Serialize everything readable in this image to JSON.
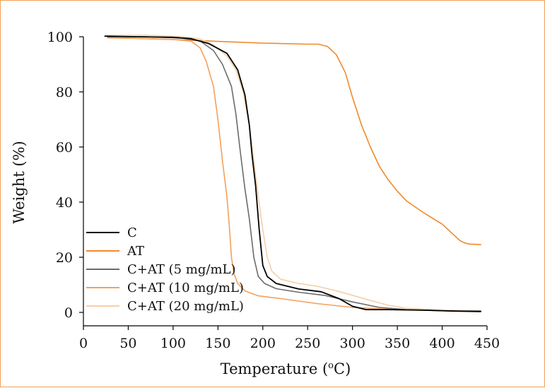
{
  "chart_data": {
    "type": "line",
    "title": "",
    "xlabel_main": "Temperature (",
    "xlabel_sup": "o",
    "xlabel_end": "C)",
    "ylabel": "Weight (%)",
    "xlim": [
      0,
      450
    ],
    "ylim": [
      -5,
      100
    ],
    "x_ticks": [
      0,
      50,
      100,
      150,
      200,
      250,
      300,
      350,
      400,
      450
    ],
    "y_ticks": [
      0,
      20,
      40,
      60,
      80,
      100
    ],
    "x_tick_labels": [
      "0",
      "50",
      "100",
      "150",
      "200",
      "250",
      "300",
      "350",
      "400",
      "450"
    ],
    "y_tick_labels": [
      "0",
      "20",
      "40",
      "60",
      "80",
      "100"
    ],
    "grid": false,
    "legend_position": "bottom-left",
    "series": [
      {
        "name": "C",
        "color": "#000000",
        "points": [
          [
            24,
            100.2
          ],
          [
            60,
            100
          ],
          [
            100,
            99.8
          ],
          [
            120,
            99.3
          ],
          [
            140,
            97.5
          ],
          [
            160,
            94
          ],
          [
            172,
            88
          ],
          [
            180,
            79
          ],
          [
            185,
            68
          ],
          [
            188,
            57
          ],
          [
            192,
            46
          ],
          [
            196,
            30
          ],
          [
            200,
            17
          ],
          [
            205,
            13
          ],
          [
            215,
            10.5
          ],
          [
            240,
            8.5
          ],
          [
            265,
            7.5
          ],
          [
            285,
            5
          ],
          [
            300,
            2.2
          ],
          [
            315,
            1
          ],
          [
            340,
            1
          ],
          [
            380,
            0.8
          ],
          [
            420,
            0.4
          ],
          [
            443,
            0.3
          ]
        ]
      },
      {
        "name": "AT",
        "color": "#ef8a2a",
        "points": [
          [
            27,
            99.7
          ],
          [
            60,
            99.4
          ],
          [
            100,
            99
          ],
          [
            150,
            98.3
          ],
          [
            200,
            97.7
          ],
          [
            250,
            97.3
          ],
          [
            262,
            97.3
          ],
          [
            272,
            96.5
          ],
          [
            282,
            93.5
          ],
          [
            292,
            87
          ],
          [
            300,
            78
          ],
          [
            310,
            68
          ],
          [
            320,
            60
          ],
          [
            330,
            53
          ],
          [
            340,
            48
          ],
          [
            350,
            44
          ],
          [
            360,
            40.5
          ],
          [
            380,
            36
          ],
          [
            400,
            32
          ],
          [
            410,
            29
          ],
          [
            415,
            27.5
          ],
          [
            420,
            26
          ],
          [
            425,
            25.2
          ],
          [
            430,
            24.8
          ],
          [
            443,
            24.6
          ]
        ]
      },
      {
        "name": "C+AT (5 mg/mL)",
        "color": "#6b6b6b",
        "points": [
          [
            27,
            100
          ],
          [
            70,
            100
          ],
          [
            110,
            99.5
          ],
          [
            130,
            98.5
          ],
          [
            145,
            95
          ],
          [
            155,
            90
          ],
          [
            165,
            82
          ],
          [
            170,
            72
          ],
          [
            175,
            58
          ],
          [
            180,
            45
          ],
          [
            185,
            34
          ],
          [
            190,
            20
          ],
          [
            195,
            13
          ],
          [
            202,
            10.5
          ],
          [
            215,
            8.6
          ],
          [
            240,
            7.3
          ],
          [
            270,
            6.1
          ],
          [
            300,
            3.8
          ],
          [
            330,
            1.8
          ],
          [
            360,
            1
          ],
          [
            400,
            0.6
          ],
          [
            443,
            0.5
          ]
        ]
      },
      {
        "name": "C+AT (10 mg/mL)",
        "color": "#f3a05c",
        "points": [
          [
            27,
            99.6
          ],
          [
            60,
            99.4
          ],
          [
            100,
            99
          ],
          [
            120,
            98.4
          ],
          [
            130,
            96
          ],
          [
            137,
            91
          ],
          [
            145,
            82
          ],
          [
            150,
            70
          ],
          [
            155,
            55
          ],
          [
            160,
            42
          ],
          [
            163,
            30
          ],
          [
            165,
            20
          ],
          [
            168,
            14
          ],
          [
            172,
            10.5
          ],
          [
            180,
            7.8
          ],
          [
            195,
            6
          ],
          [
            220,
            5
          ],
          [
            260,
            3.2
          ],
          [
            300,
            1.8
          ],
          [
            350,
            1
          ],
          [
            400,
            0.6
          ],
          [
            443,
            0.4
          ]
        ]
      },
      {
        "name": "C+AT (20 mg/mL)",
        "color": "#f6cfa8",
        "points": [
          [
            27,
            100.5
          ],
          [
            70,
            100.6
          ],
          [
            110,
            100
          ],
          [
            130,
            99.2
          ],
          [
            145,
            97
          ],
          [
            160,
            93
          ],
          [
            170,
            88
          ],
          [
            178,
            80
          ],
          [
            185,
            68
          ],
          [
            190,
            55
          ],
          [
            195,
            42
          ],
          [
            200,
            30
          ],
          [
            205,
            20
          ],
          [
            210,
            15
          ],
          [
            220,
            12
          ],
          [
            240,
            10.5
          ],
          [
            260,
            9.5
          ],
          [
            280,
            8
          ],
          [
            300,
            6.2
          ],
          [
            320,
            4.3
          ],
          [
            340,
            2.6
          ],
          [
            360,
            1.5
          ],
          [
            400,
            0.8
          ],
          [
            443,
            0.5
          ]
        ]
      }
    ]
  }
}
